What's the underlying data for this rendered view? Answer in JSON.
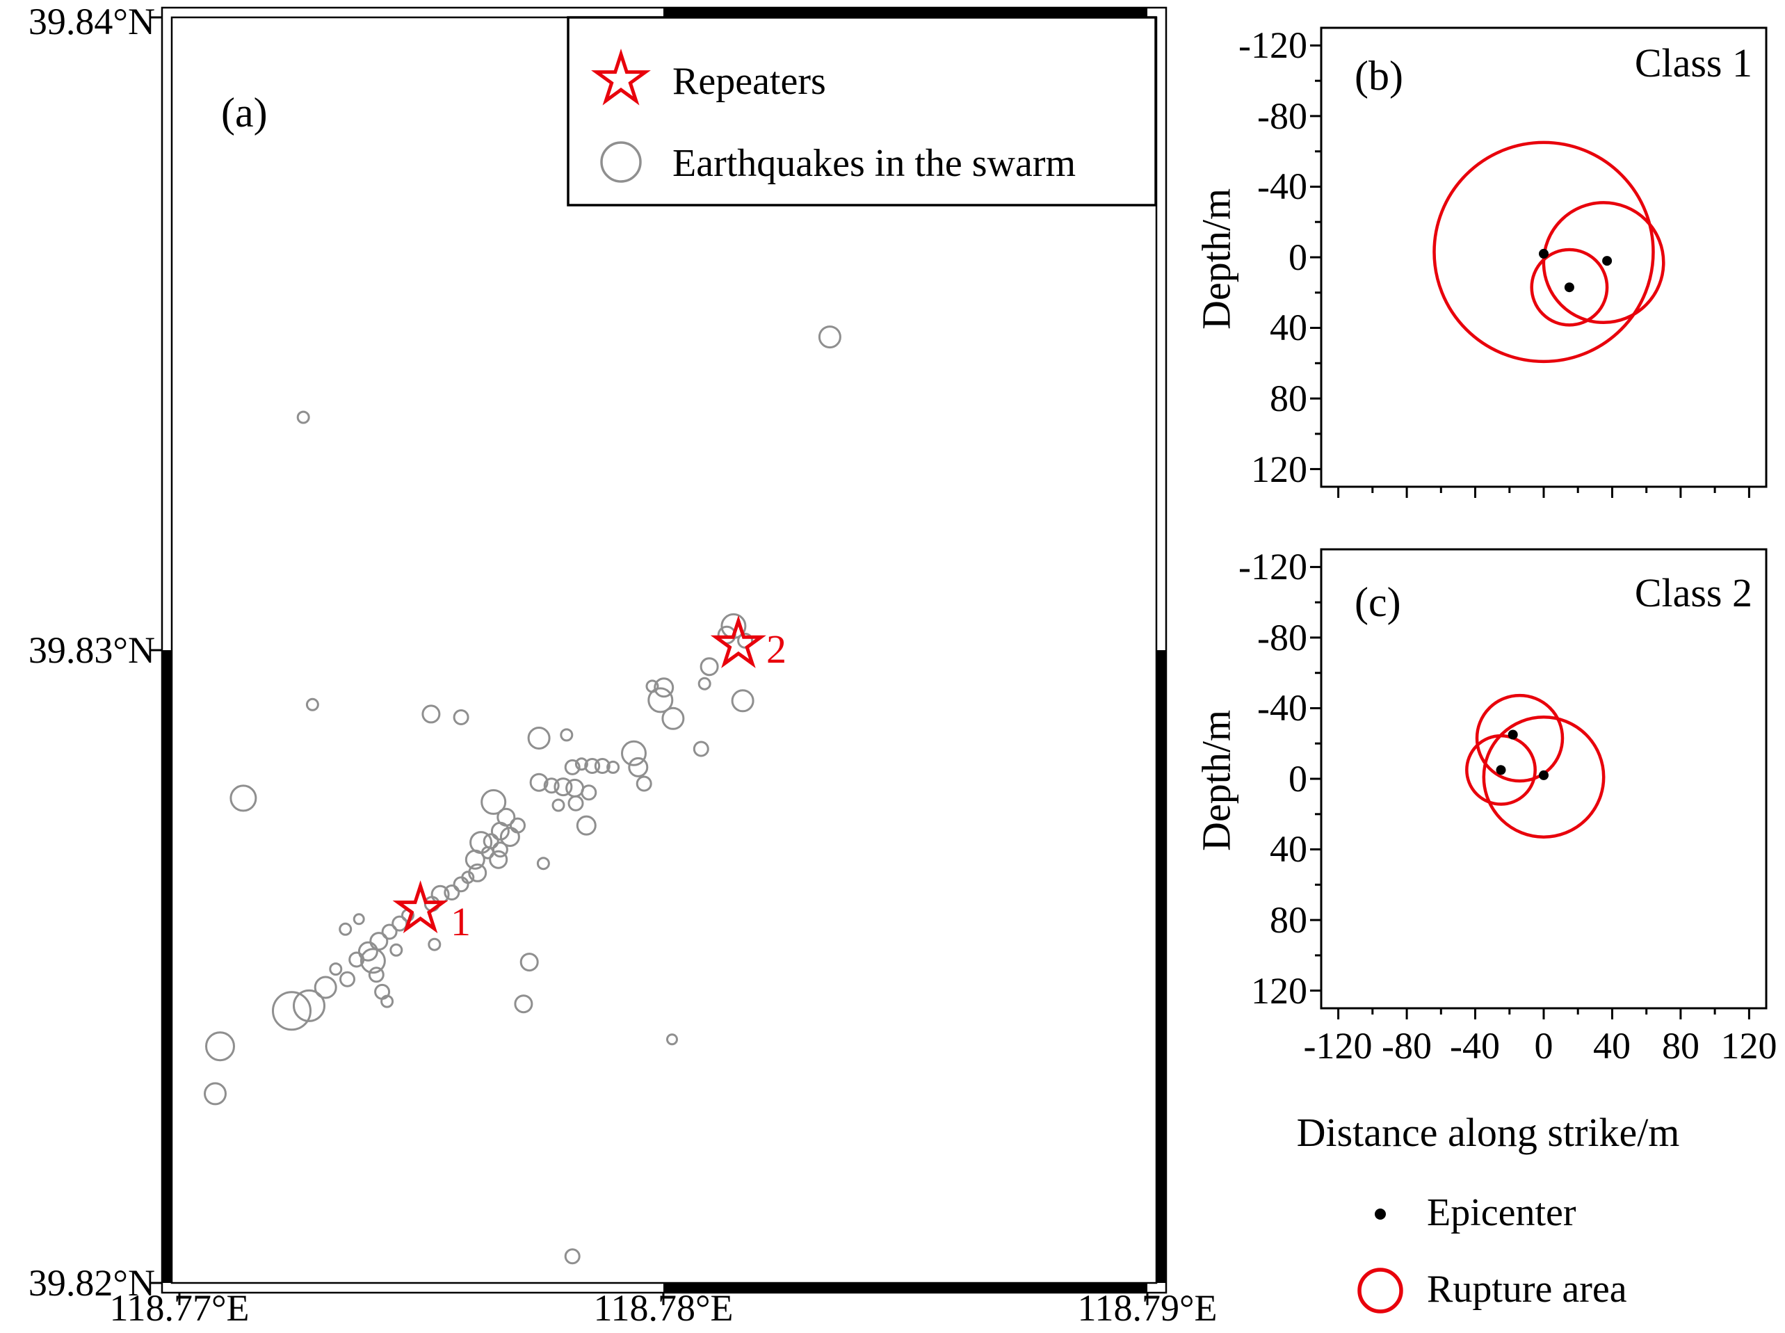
{
  "colors": {
    "red": "#e8000b",
    "gray": "#8f8f8f",
    "black": "#000000",
    "background": "#ffffff"
  },
  "figure_legend": {
    "items": [
      {
        "symbol": "dot",
        "label": "Epicenter"
      },
      {
        "symbol": "open-circle",
        "label": "Rupture area"
      }
    ]
  },
  "chart_data": [
    {
      "id": "a",
      "type": "scatter",
      "panel_label": "(a)",
      "xlim": [
        118.7698,
        118.7902
      ],
      "ylim": [
        39.82,
        39.84
      ],
      "x_ticks": [
        {
          "value": 118.77,
          "label": "118.77°E"
        },
        {
          "value": 118.78,
          "label": "118.78°E"
        },
        {
          "value": 118.79,
          "label": "118.79°E"
        }
      ],
      "y_ticks": [
        {
          "value": 39.84,
          "label": "39.84°N"
        },
        {
          "value": 39.83,
          "label": "39.83°N"
        },
        {
          "value": 39.82,
          "label": "39.82°N"
        }
      ],
      "legend": {
        "items": [
          {
            "symbol": "star",
            "label": "Repeaters"
          },
          {
            "symbol": "open-circle",
            "label": "Earthquakes in the swarm"
          }
        ]
      },
      "repeaters": [
        {
          "lon": 118.77498,
          "lat": 39.8259,
          "label": "1"
        },
        {
          "lon": 118.78155,
          "lat": 39.83009,
          "label": "2"
        }
      ],
      "earthquakes": [
        [
          118.78344,
          39.83495,
          15
        ],
        [
          118.77256,
          39.83368,
          8
        ],
        [
          118.77275,
          39.82914,
          8
        ],
        [
          118.77132,
          39.82766,
          18
        ],
        [
          118.7752,
          39.82899,
          12
        ],
        [
          118.77582,
          39.82894,
          10
        ],
        [
          118.78018,
          39.82385,
          7
        ],
        [
          118.77812,
          39.82042,
          10
        ],
        [
          118.77084,
          39.82374,
          20
        ],
        [
          118.77074,
          39.82299,
          15
        ],
        [
          118.77723,
          39.82507,
          12
        ],
        [
          118.77711,
          39.82441,
          12
        ],
        [
          118.7802,
          39.82892,
          15
        ],
        [
          118.78145,
          39.83038,
          17
        ],
        [
          118.78131,
          39.83024,
          12
        ],
        [
          118.78169,
          39.83015,
          10
        ],
        [
          118.78095,
          39.82974,
          12
        ],
        [
          118.78164,
          39.8292,
          15
        ],
        [
          118.78085,
          39.82947,
          8
        ],
        [
          118.78001,
          39.82941,
          13
        ],
        [
          118.77994,
          39.82921,
          17
        ],
        [
          118.77977,
          39.82943,
          8
        ],
        [
          118.78078,
          39.82844,
          10
        ],
        [
          118.77939,
          39.82837,
          17
        ],
        [
          118.77948,
          39.82815,
          13
        ],
        [
          118.7796,
          39.82789,
          10
        ],
        [
          118.77743,
          39.82861,
          15
        ],
        [
          118.778,
          39.82866,
          8
        ],
        [
          118.77812,
          39.82815,
          10
        ],
        [
          118.77831,
          39.8282,
          8
        ],
        [
          118.77853,
          39.82817,
          10
        ],
        [
          118.77874,
          39.82817,
          10
        ],
        [
          118.77896,
          39.82815,
          8
        ],
        [
          118.77743,
          39.82791,
          12
        ],
        [
          118.77769,
          39.82786,
          10
        ],
        [
          118.77793,
          39.82784,
          12
        ],
        [
          118.77817,
          39.82782,
          12
        ],
        [
          118.77846,
          39.82775,
          10
        ],
        [
          118.77819,
          39.82758,
          10
        ],
        [
          118.77783,
          39.82755,
          8
        ],
        [
          118.77841,
          39.82723,
          13
        ],
        [
          118.77649,
          39.8276,
          17
        ],
        [
          118.77675,
          39.82736,
          12
        ],
        [
          118.77699,
          39.82723,
          10
        ],
        [
          118.77663,
          39.82714,
          12
        ],
        [
          118.77683,
          39.82705,
          13
        ],
        [
          118.77644,
          39.82698,
          10
        ],
        [
          118.77663,
          39.82685,
          10
        ],
        [
          118.77637,
          39.8268,
          8
        ],
        [
          118.77659,
          39.82669,
          12
        ],
        [
          118.77623,
          39.82696,
          15
        ],
        [
          118.77611,
          39.82669,
          13
        ],
        [
          118.77616,
          39.82648,
          12
        ],
        [
          118.77596,
          39.82641,
          8
        ],
        [
          118.77582,
          39.8263,
          10
        ],
        [
          118.77563,
          39.82617,
          10
        ],
        [
          118.77752,
          39.82663,
          8
        ],
        [
          118.77539,
          39.82614,
          12
        ],
        [
          118.77522,
          39.82599,
          10
        ],
        [
          118.77472,
          39.82581,
          8
        ],
        [
          118.77455,
          39.82568,
          10
        ],
        [
          118.77434,
          39.82555,
          10
        ],
        [
          118.77412,
          39.8254,
          12
        ],
        [
          118.77448,
          39.82526,
          8
        ],
        [
          118.7739,
          39.82524,
          13
        ],
        [
          118.77366,
          39.82511,
          10
        ],
        [
          118.774,
          39.82509,
          17
        ],
        [
          118.77407,
          39.82487,
          10
        ],
        [
          118.77343,
          39.82559,
          8
        ],
        [
          118.77371,
          39.82575,
          7
        ],
        [
          118.77527,
          39.82535,
          8
        ],
        [
          118.77347,
          39.8248,
          10
        ],
        [
          118.77323,
          39.82496,
          8
        ],
        [
          118.77302,
          39.82467,
          15
        ],
        [
          118.77268,
          39.82438,
          22
        ],
        [
          118.77232,
          39.8243,
          27
        ],
        [
          118.77419,
          39.8246,
          10
        ],
        [
          118.77429,
          39.82445,
          8
        ]
      ]
    },
    {
      "id": "b",
      "type": "scatter",
      "panel_label": "(b)",
      "class_label": "Class 1",
      "ylabel": "Depth/m",
      "axis_range": [
        -130,
        130
      ],
      "y_ticks": [
        -120,
        -80,
        -40,
        0,
        40,
        80,
        120
      ],
      "epicenters": [
        [
          0,
          -2
        ],
        [
          15,
          17
        ],
        [
          37,
          2
        ]
      ],
      "rupture_circles": [
        [
          0,
          -3,
          64
        ],
        [
          35,
          3,
          35
        ],
        [
          15,
          17,
          22
        ]
      ]
    },
    {
      "id": "c",
      "type": "scatter",
      "panel_label": "(c)",
      "class_label": "Class 2",
      "xlabel": "Distance along strike/m",
      "ylabel": "Depth/m",
      "axis_range": [
        -130,
        130
      ],
      "x_ticks": [
        -120,
        -80,
        -40,
        0,
        40,
        80,
        120
      ],
      "y_ticks": [
        -120,
        -80,
        -40,
        0,
        40,
        80,
        120
      ],
      "epicenters": [
        [
          -25,
          -5
        ],
        [
          -18,
          -25
        ],
        [
          0,
          -2
        ]
      ],
      "rupture_circles": [
        [
          -25,
          -5,
          20
        ],
        [
          -14,
          -23,
          25
        ],
        [
          0,
          -1,
          35
        ]
      ]
    }
  ]
}
